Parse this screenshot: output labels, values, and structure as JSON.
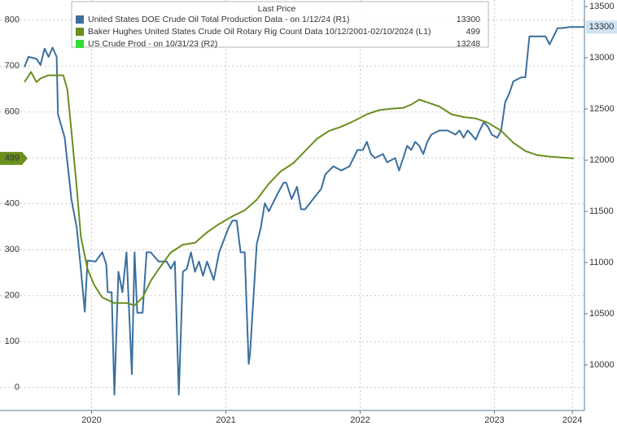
{
  "chart_data": {
    "type": "line",
    "legend_title": "Last Price",
    "xlim": [
      2020.0,
      2024.17
    ],
    "xticks": [
      {
        "value": 2020.5,
        "label": "2020"
      },
      {
        "value": 2021.5,
        "label": "2021"
      },
      {
        "value": 2022.5,
        "label": "2022"
      },
      {
        "value": 2023.5,
        "label": "2023"
      },
      {
        "value": 2024.08,
        "label": "2024"
      }
    ],
    "ylim": [
      -50,
      835
    ],
    "yticks": [
      0,
      100,
      200,
      300,
      400,
      500,
      600,
      700,
      800
    ],
    "y2lim": [
      9555,
      13525
    ],
    "y2ticks": [
      10000,
      10500,
      11000,
      11500,
      12000,
      12500,
      13000,
      13500
    ],
    "grid": true,
    "series": [
      {
        "name": "United States DOE Crude Oil Total Production Data -  on 1/12/24  (R1)",
        "color": "#3b6f9e",
        "axis": "y2",
        "last": 13300,
        "x": [
          2020.0,
          2020.03,
          2020.09,
          2020.12,
          2020.15,
          2020.18,
          2020.21,
          2020.24,
          2020.25,
          2020.3,
          2020.35,
          2020.39,
          2020.42,
          2020.45,
          2020.47,
          2020.53,
          2020.58,
          2020.61,
          2020.62,
          2020.65,
          2020.67,
          2020.7,
          2020.73,
          2020.76,
          2020.78,
          2020.8,
          2020.82,
          2020.84,
          2020.88,
          2020.91,
          2020.94,
          2021.0,
          2021.06,
          2021.09,
          2021.12,
          2021.15,
          2021.18,
          2021.21,
          2021.24,
          2021.27,
          2021.3,
          2021.33,
          2021.36,
          2021.41,
          2021.45,
          2021.52,
          2021.55,
          2021.58,
          2021.61,
          2021.64,
          2021.67,
          2021.68,
          2021.73,
          2021.76,
          2021.79,
          2021.82,
          2021.88,
          2021.93,
          2021.95,
          2021.99,
          2022.03,
          2022.06,
          2022.09,
          2022.15,
          2022.21,
          2022.24,
          2022.3,
          2022.36,
          2022.42,
          2022.48,
          2022.52,
          2022.55,
          2022.58,
          2022.61,
          2022.67,
          2022.7,
          2022.76,
          2022.79,
          2022.82,
          2022.85,
          2022.88,
          2022.91,
          2022.94,
          2022.97,
          2023.0,
          2023.03,
          2023.09,
          2023.15,
          2023.21,
          2023.24,
          2023.27,
          2023.3,
          2023.33,
          2023.36,
          2023.39,
          2023.42,
          2023.45,
          2023.48,
          2023.52,
          2023.55,
          2023.58,
          2023.61,
          2023.64,
          2023.7,
          2023.73,
          2023.76,
          2023.82,
          2023.88,
          2023.91,
          2023.94,
          2023.97,
          2024.0,
          2024.06,
          2024.17
        ],
        "values": [
          12910,
          13010,
          12990,
          12930,
          13090,
          13010,
          13100,
          13010,
          12450,
          12220,
          11620,
          11340,
          10940,
          10520,
          11020,
          11010,
          11100,
          10980,
          10710,
          10710,
          9710,
          10910,
          10710,
          11100,
          10510,
          9910,
          11100,
          10510,
          10510,
          11100,
          11100,
          11010,
          11010,
          10940,
          11010,
          9710,
          10910,
          10940,
          11100,
          10910,
          11010,
          10870,
          11010,
          10830,
          11100,
          11340,
          11410,
          11410,
          11100,
          11100,
          10010,
          10110,
          11180,
          11340,
          11580,
          11500,
          11660,
          11780,
          11780,
          11620,
          11740,
          11520,
          11520,
          11620,
          11720,
          11860,
          11940,
          11900,
          11940,
          12100,
          12100,
          12180,
          12060,
          12020,
          12060,
          11980,
          12020,
          11900,
          12020,
          12140,
          12100,
          12180,
          12140,
          12060,
          12180,
          12250,
          12290,
          12290,
          12250,
          12290,
          12220,
          12290,
          12250,
          12200,
          12290,
          12370,
          12330,
          12250,
          12220,
          12290,
          12570,
          12650,
          12770,
          12810,
          12810,
          13210,
          13210,
          13210,
          13130,
          13210,
          13290,
          13290,
          13300,
          13300
        ]
      },
      {
        "name": "Baker Hughes United States Crude Oil Rotary Rig Count Data 10/12/2001-02/10/2024  (L1)",
        "color": "#6a8f1f",
        "axis": "y",
        "last": 499,
        "x": [
          2020.0,
          2020.05,
          2020.09,
          2020.12,
          2020.18,
          2020.25,
          2020.29,
          2020.32,
          2020.35,
          2020.39,
          2020.42,
          2020.47,
          2020.52,
          2020.58,
          2020.67,
          2020.76,
          2020.82,
          2020.88,
          2020.94,
          2021.0,
          2021.09,
          2021.18,
          2021.27,
          2021.36,
          2021.45,
          2021.55,
          2021.64,
          2021.73,
          2021.82,
          2021.91,
          2022.0,
          2022.09,
          2022.18,
          2022.27,
          2022.36,
          2022.45,
          2022.55,
          2022.64,
          2022.73,
          2022.82,
          2022.88,
          2022.94,
          2023.0,
          2023.09,
          2023.18,
          2023.27,
          2023.36,
          2023.45,
          2023.55,
          2023.64,
          2023.73,
          2023.82,
          2023.91,
          2024.0,
          2024.09
        ],
        "values": [
          665,
          687,
          665,
          673,
          680,
          680,
          680,
          648,
          559,
          435,
          329,
          258,
          223,
          196,
          184,
          184,
          179,
          196,
          232,
          258,
          294,
          311,
          315,
          338,
          356,
          373,
          386,
          409,
          444,
          471,
          488,
          515,
          542,
          559,
          568,
          580,
          595,
          604,
          607,
          609,
          616,
          627,
          621,
          612,
          595,
          589,
          586,
          577,
          559,
          533,
          515,
          506,
          503,
          501,
          499
        ]
      }
    ],
    "legend_extra": [
      {
        "name": "US Crude Prod -  on 10/31/23  (R2)",
        "color": "#33dd33",
        "last": 13248
      }
    ]
  }
}
